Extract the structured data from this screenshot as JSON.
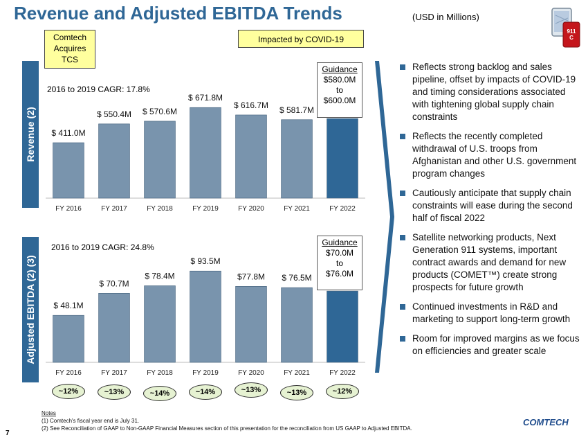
{
  "page": {
    "title": "Revenue and Adjusted EBITDA Trends",
    "units": "(USD in Millions)",
    "page_number": "7",
    "phone_icon_text": "911\nC",
    "logo_text": "COMTECH",
    "acquires_box": [
      "Comtech",
      "Acquires",
      "TCS"
    ],
    "covid_box": "Impacted by COVID-19",
    "revenue_axis_label": "Revenue (2)",
    "ebitda_axis_label": "Adjusted EBITDA (2) (3)",
    "revenue_cagr": "2016 to 2019 CAGR: 17.8%",
    "ebitda_cagr": "2016 to 2019 CAGR: 24.8%",
    "revenue_guidance": [
      "Guidance",
      "$580.0M",
      "to",
      "$600.0M"
    ],
    "ebitda_guidance": [
      "Guidance",
      "$70.0M",
      "to",
      "$76.0M"
    ],
    "margins": [
      "~12%",
      "~13%",
      "~14%",
      "~14%",
      "~13%",
      "~13%",
      "~12%"
    ],
    "bullets": [
      "Reflects strong backlog and sales pipeline, offset by impacts of COVID-19 and timing considerations associated with tightening global supply chain constraints",
      "Reflects the recently completed withdrawal of U.S. troops from Afghanistan and other U.S. government program changes",
      "Cautiously anticipate that supply chain constraints will ease during the second half of fiscal 2022",
      "Satellite networking products, Next Generation 911 systems, important contract awards and demand for new products (COMET™) create strong prospects for future growth",
      "Continued investments in R&D and marketing to support long-term growth",
      "Room for improved margins as we focus on efficiencies and greater scale"
    ],
    "notes_title": "Notes",
    "notes": [
      "(1)   Comtech's fiscal year end is July 31.",
      "(2)   See Reconciliation of GAAP to Non-GAAP Financial Measures section of this presentation for the reconciliation from US GAAP to Adjusted EBITDA."
    ],
    "colors": {
      "title": "#2f6796",
      "bar": "#7994ad",
      "bar_highlight": "#2f6796",
      "guidance_bar": "#2f6796"
    }
  },
  "chart_data": [
    {
      "type": "bar",
      "categories": [
        "FY 2016",
        "FY 2017",
        "FY 2018",
        "FY 2019",
        "FY 2020",
        "FY 2021",
        "FY 2022"
      ],
      "values": [
        411.0,
        550.4,
        570.6,
        671.8,
        616.7,
        581.7,
        590.0
      ],
      "data_labels": [
        "$ 411.0M",
        "$ 550.4M",
        "$ 570.6M",
        "$ 671.8M",
        "$ 616.7M",
        "$ 581.7M",
        ""
      ],
      "ylim": [
        0,
        750
      ],
      "grid": false
    },
    {
      "type": "bar",
      "categories": [
        "FY 2016",
        "FY 2017",
        "FY 2018",
        "FY 2019",
        "FY 2020",
        "FY 2021",
        "FY 2022"
      ],
      "values": [
        48.1,
        70.7,
        78.4,
        93.5,
        77.8,
        76.5,
        73.0
      ],
      "data_labels": [
        "$ 48.1M",
        "$ 70.7M",
        "$ 78.4M",
        "$ 93.5M",
        "$77.8M",
        "$ 76.5M",
        ""
      ],
      "ylim": [
        0,
        105
      ],
      "grid": false
    }
  ]
}
